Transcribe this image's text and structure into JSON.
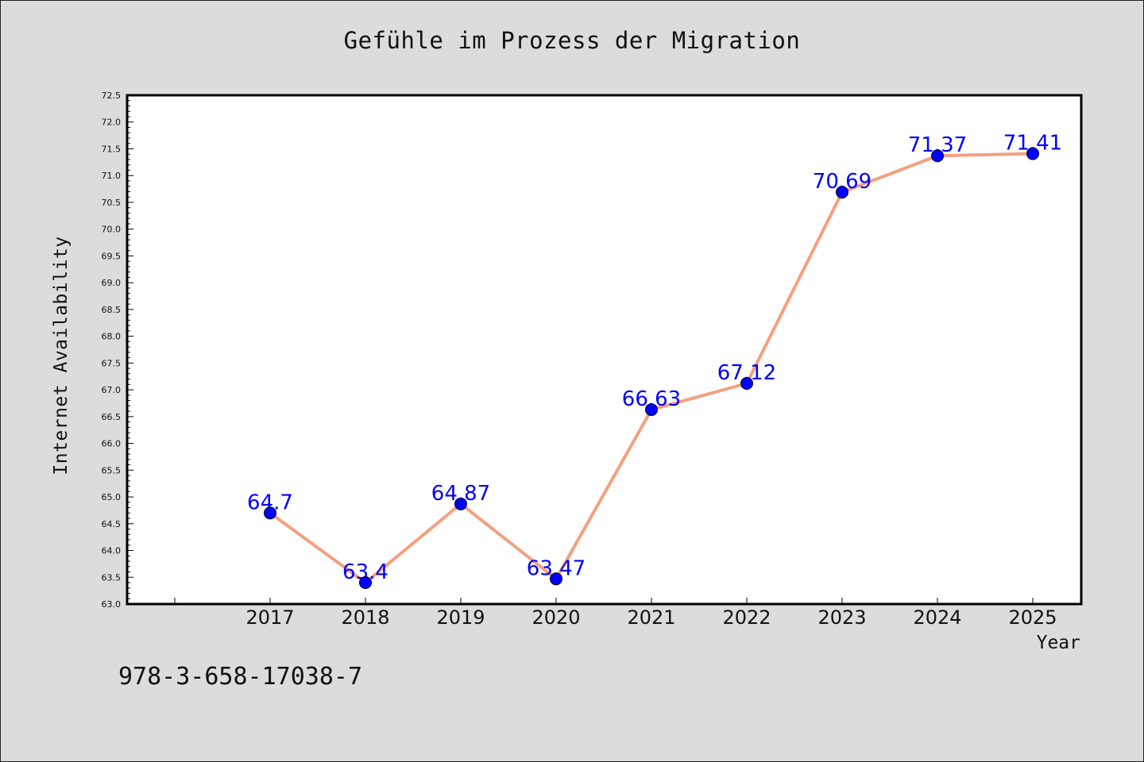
{
  "chart_data": {
    "type": "line",
    "title": "Gefühle im Prozess der Migration",
    "xlabel": "Year",
    "ylabel": "Internet Availability",
    "x": [
      "2017",
      "2018",
      "2019",
      "2020",
      "2021",
      "2022",
      "2023",
      "2024",
      "2025"
    ],
    "series": [
      {
        "values": [
          64.7,
          63.4,
          64.87,
          63.47,
          66.63,
          67.12,
          70.69,
          71.37,
          71.41
        ],
        "data_labels": [
          "64.7",
          "63.4",
          "64.87",
          "63.47",
          "66.63",
          "67.12",
          "70.69",
          "71.37",
          "71.41"
        ],
        "line_color": "#f4a07f",
        "marker_color": "#0000ff"
      }
    ],
    "ylim": [
      63.0,
      72.5
    ],
    "yticks": [
      "63.0",
      "63.5",
      "64.0",
      "64.5",
      "65.0",
      "65.5",
      "66.0",
      "66.5",
      "67.0",
      "67.5",
      "68.0",
      "68.5",
      "69.0",
      "69.5",
      "70.0",
      "70.5",
      "71.0",
      "71.5",
      "72.0",
      "72.5"
    ],
    "grid": false,
    "legend": "none",
    "annotation": "978-3-658-17038-7",
    "colors": {
      "background": "#dcdcdc",
      "plot_area": "#ffffff",
      "line": "#f4a07f",
      "marker": "#0000ff",
      "data_label": "#0000ff"
    }
  }
}
